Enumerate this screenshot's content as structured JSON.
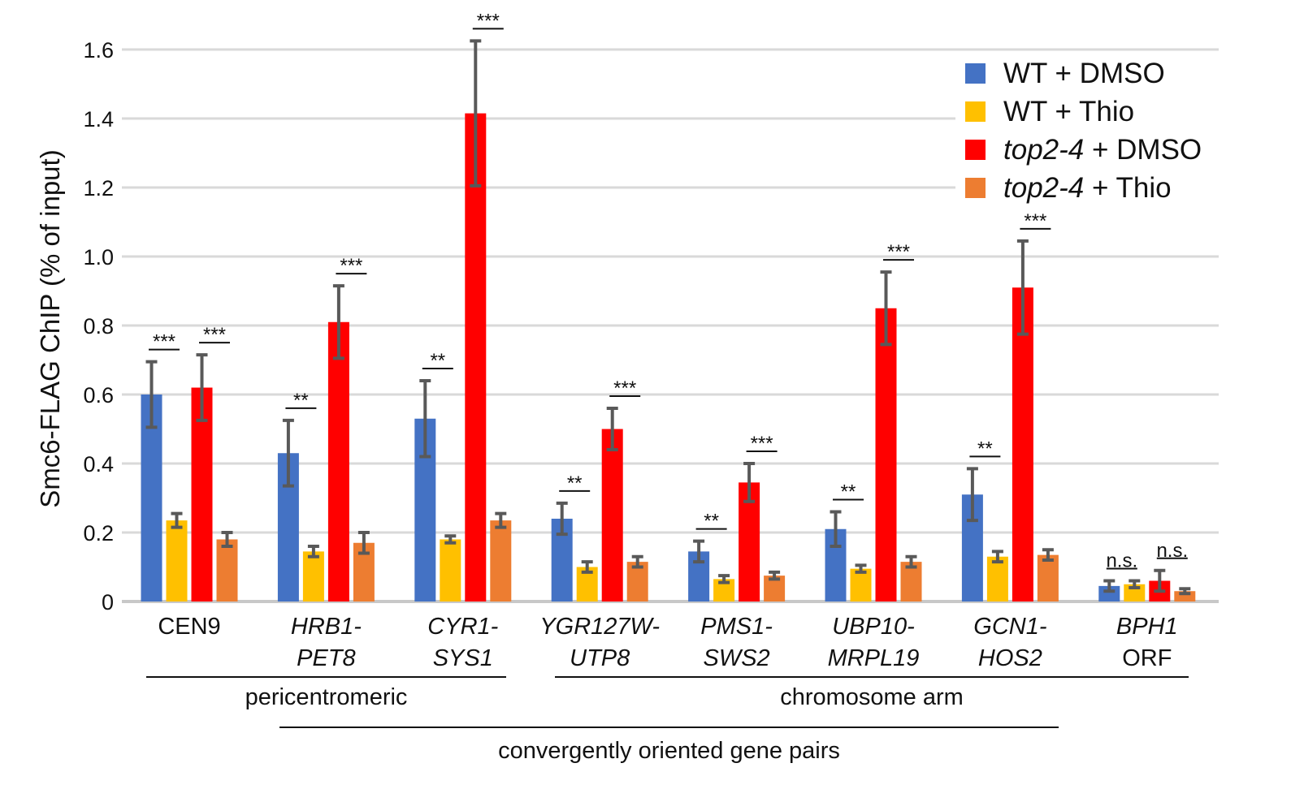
{
  "chart_data": {
    "type": "bar",
    "ylabel": "Smc6-FLAG ChIP (% of input)",
    "ylim": [
      0,
      1.6
    ],
    "yticks": [
      "0",
      "0.2",
      "0.4",
      "0.6",
      "0.8",
      "1.0",
      "1.2",
      "1.4",
      "1.6"
    ],
    "ytick_values": [
      0,
      0.2,
      0.4,
      0.6,
      0.8,
      1.0,
      1.2,
      1.4,
      1.6
    ],
    "grid": true,
    "legend_position": "top-right",
    "categories": [
      {
        "line1": "CEN9",
        "line2": "",
        "italic": false
      },
      {
        "line1": "HRB1-",
        "line2": "PET8",
        "italic": true
      },
      {
        "line1": "CYR1-",
        "line2": "SYS1",
        "italic": true
      },
      {
        "line1": "YGR127W-",
        "line2": "UTP8",
        "italic": true
      },
      {
        "line1": "PMS1-",
        "line2": "SWS2",
        "italic": true
      },
      {
        "line1": "UBP10-",
        "line2": "MRPL19",
        "italic": true
      },
      {
        "line1": "GCN1-",
        "line2": "HOS2",
        "italic": true
      },
      {
        "line1": "BPH1",
        "line2": "ORF",
        "italic": false,
        "line1_italic": true
      }
    ],
    "series": [
      {
        "name_italic": "",
        "name_rest": "WT + DMSO",
        "color": "#4472C4",
        "values": [
          0.6,
          0.43,
          0.53,
          0.24,
          0.145,
          0.21,
          0.31,
          0.045
        ],
        "errors": [
          0.095,
          0.095,
          0.11,
          0.045,
          0.03,
          0.05,
          0.075,
          0.015
        ]
      },
      {
        "name_italic": "",
        "name_rest": "WT + Thio",
        "color": "#FFC000",
        "values": [
          0.235,
          0.145,
          0.18,
          0.1,
          0.065,
          0.095,
          0.13,
          0.05
        ],
        "errors": [
          0.02,
          0.015,
          0.01,
          0.015,
          0.01,
          0.01,
          0.015,
          0.01
        ]
      },
      {
        "name_italic": "top2-4",
        "name_rest": " + DMSO",
        "color": "#FF0000",
        "values": [
          0.62,
          0.81,
          1.415,
          0.5,
          0.345,
          0.85,
          0.91,
          0.06
        ],
        "errors": [
          0.095,
          0.105,
          0.21,
          0.06,
          0.055,
          0.105,
          0.135,
          0.03
        ]
      },
      {
        "name_italic": "top2-4",
        "name_rest": " + Thio",
        "color": "#ED7D31",
        "values": [
          0.18,
          0.17,
          0.235,
          0.115,
          0.075,
          0.115,
          0.135,
          0.03
        ],
        "errors": [
          0.02,
          0.03,
          0.02,
          0.015,
          0.01,
          0.015,
          0.015,
          0.007
        ]
      }
    ],
    "significance": [
      {
        "category": 0,
        "over": "WT + DMSO",
        "label": "***"
      },
      {
        "category": 0,
        "over": "top2-4 + DMSO",
        "label": "***"
      },
      {
        "category": 1,
        "over": "WT + DMSO",
        "label": "**"
      },
      {
        "category": 1,
        "over": "top2-4 + DMSO",
        "label": "***"
      },
      {
        "category": 2,
        "over": "WT + DMSO",
        "label": "**"
      },
      {
        "category": 2,
        "over": "top2-4 + DMSO",
        "label": "***"
      },
      {
        "category": 3,
        "over": "WT + DMSO",
        "label": "**"
      },
      {
        "category": 3,
        "over": "top2-4 + DMSO",
        "label": "***"
      },
      {
        "category": 4,
        "over": "WT + DMSO",
        "label": "**"
      },
      {
        "category": 4,
        "over": "top2-4 + DMSO",
        "label": "***"
      },
      {
        "category": 5,
        "over": "WT + DMSO",
        "label": "**"
      },
      {
        "category": 5,
        "over": "top2-4 + DMSO",
        "label": "***"
      },
      {
        "category": 6,
        "over": "WT + DMSO",
        "label": "**"
      },
      {
        "category": 6,
        "over": "top2-4 + DMSO",
        "label": "***"
      },
      {
        "category": 7,
        "over": "WT + DMSO",
        "label": "n.s."
      },
      {
        "category": 7,
        "over": "top2-4 + DMSO",
        "label": "n.s."
      }
    ],
    "groupings": [
      {
        "label": "pericentromeric",
        "from_category": 0,
        "to_category": 2
      },
      {
        "label": "chromosome arm",
        "from_category": 3,
        "to_category": 7
      },
      {
        "label": "convergently oriented gene pairs",
        "from_category": 1,
        "to_category": 6
      }
    ]
  }
}
